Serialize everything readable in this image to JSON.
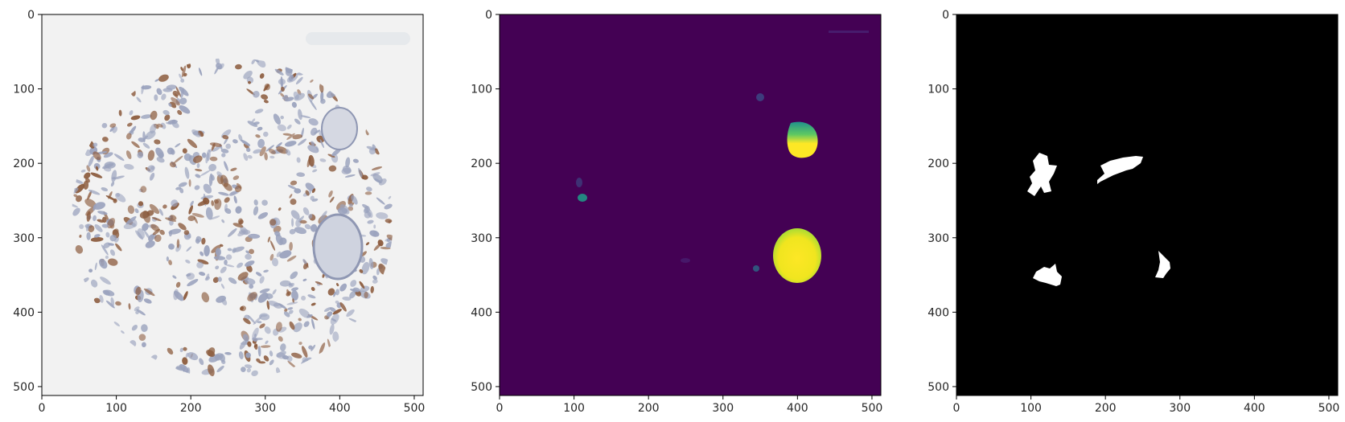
{
  "figure": {
    "panels": [
      {
        "name": "tissue-image-panel",
        "kind": "tissue",
        "x_ticks": [
          "0",
          "100",
          "200",
          "300",
          "400",
          "500"
        ],
        "y_ticks": [
          "0",
          "100",
          "200",
          "300",
          "400",
          "500"
        ]
      },
      {
        "name": "probability-map-panel",
        "kind": "heatmap",
        "x_ticks": [
          "0",
          "100",
          "200",
          "300",
          "400",
          "500"
        ],
        "y_ticks": [
          "0",
          "100",
          "200",
          "300",
          "400",
          "500"
        ]
      },
      {
        "name": "binary-mask-panel",
        "kind": "mask",
        "x_ticks": [
          "0",
          "100",
          "200",
          "300",
          "400",
          "500"
        ],
        "y_ticks": [
          "0",
          "100",
          "200",
          "300",
          "400",
          "500"
        ]
      }
    ],
    "colors": {
      "tissue_background": "#f2f2f2",
      "stain_brown": "#8b5a3c",
      "stain_blue": "#9aa2bd",
      "heatmap_low": "#440154",
      "heatmap_mid": "#21918c",
      "heatmap_high": "#fde725",
      "mask_background": "#000000",
      "mask_foreground": "#ffffff"
    }
  }
}
